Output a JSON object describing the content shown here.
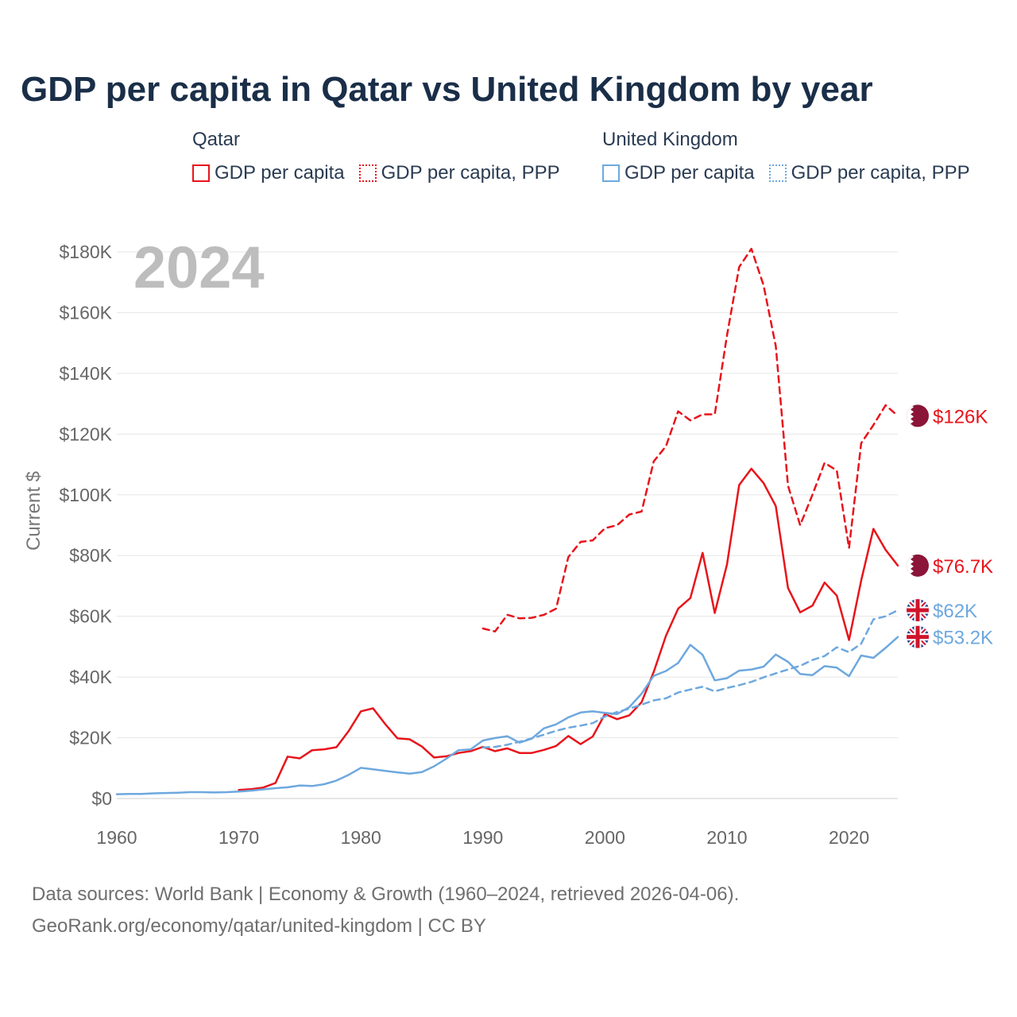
{
  "title": "GDP per capita in Qatar vs United Kingdom by year",
  "legend": {
    "groups": [
      {
        "name": "Qatar",
        "color": "#e8141b",
        "items": [
          {
            "label": "GDP per capita",
            "style": "solid"
          },
          {
            "label": "GDP per capita, PPP",
            "style": "dotted"
          }
        ]
      },
      {
        "name": "United Kingdom",
        "color": "#6ea8de",
        "items": [
          {
            "label": "GDP per capita",
            "style": "solid"
          },
          {
            "label": "GDP per capita, PPP",
            "style": "dotted"
          }
        ]
      }
    ]
  },
  "year_watermark": "2024",
  "source": {
    "line1": "Data sources: World Bank | Economy & Growth (1960–2024, retrieved 2026-04-06).",
    "line2": "GeoRank.org/economy/qatar/united-kingdom | CC BY"
  },
  "chart_data": {
    "type": "line",
    "title": "GDP per capita in Qatar vs United Kingdom by year",
    "xlabel": "",
    "ylabel": "Current $",
    "xlim": [
      1960,
      2024
    ],
    "ylim": [
      0,
      180000
    ],
    "grid": true,
    "x_ticks": [
      1960,
      1970,
      1980,
      1990,
      2000,
      2010,
      2020
    ],
    "x_tick_labels": [
      "1960",
      "1970",
      "1980",
      "1990",
      "2000",
      "2010",
      "2020"
    ],
    "y_ticks": [
      0,
      20000,
      40000,
      60000,
      80000,
      100000,
      120000,
      140000,
      160000,
      180000
    ],
    "y_tick_labels": [
      "$0",
      "$20K",
      "$40K",
      "$60K",
      "$80K",
      "$100K",
      "$120K",
      "$140K",
      "$160K",
      "$180K"
    ],
    "series": [
      {
        "name": "Qatar GDP per capita, PPP",
        "color": "#e8141b",
        "dash": true,
        "end_label": "$126K",
        "flag": "qatar",
        "x": [
          1990,
          1991,
          1992,
          1993,
          1994,
          1995,
          1996,
          1997,
          1998,
          1999,
          2000,
          2001,
          2002,
          2003,
          2004,
          2005,
          2006,
          2007,
          2008,
          2009,
          2010,
          2011,
          2012,
          2013,
          2014,
          2015,
          2016,
          2017,
          2018,
          2019,
          2020,
          2021,
          2022,
          2023,
          2024
        ],
        "values": [
          56000,
          55000,
          60500,
          59300,
          59500,
          60500,
          62500,
          79500,
          84500,
          85000,
          89000,
          90000,
          93500,
          94500,
          111000,
          116000,
          127500,
          124500,
          126500,
          126500,
          152500,
          175000,
          181000,
          169000,
          149000,
          103000,
          90000,
          100000,
          110500,
          108000,
          82500,
          117000,
          123000,
          129500,
          126000
        ]
      },
      {
        "name": "Qatar GDP per capita",
        "color": "#e8141b",
        "dash": false,
        "end_label": "$76.7K",
        "flag": "qatar",
        "x": [
          1970,
          1971,
          1972,
          1973,
          1974,
          1975,
          1976,
          1977,
          1978,
          1979,
          1980,
          1981,
          1982,
          1983,
          1984,
          1985,
          1986,
          1987,
          1988,
          1989,
          1990,
          1991,
          1992,
          1993,
          1994,
          1995,
          1996,
          1997,
          1998,
          1999,
          2000,
          2001,
          2002,
          2003,
          2004,
          2005,
          2006,
          2007,
          2008,
          2009,
          2010,
          2011,
          2012,
          2013,
          2014,
          2015,
          2016,
          2017,
          2018,
          2019,
          2020,
          2021,
          2022,
          2023,
          2024
        ],
        "values": [
          2800,
          3100,
          3600,
          5100,
          13800,
          13200,
          15900,
          16200,
          16900,
          22200,
          28700,
          29700,
          24500,
          19800,
          19500,
          17100,
          13500,
          13900,
          15000,
          15600,
          17000,
          15600,
          16500,
          15000,
          15000,
          16000,
          17300,
          20600,
          17900,
          20400,
          27800,
          26100,
          27400,
          31700,
          41700,
          53600,
          62500,
          66000,
          80900,
          61100,
          77100,
          103200,
          108600,
          103900,
          96300,
          69300,
          61300,
          63500,
          71100,
          66800,
          52200,
          71800,
          88800,
          81900,
          76700
        ]
      },
      {
        "name": "United Kingdom GDP per capita, PPP",
        "color": "#6ea8de",
        "dash": true,
        "end_label": "$62K",
        "flag": "uk",
        "x": [
          1990,
          1991,
          1992,
          1993,
          1994,
          1995,
          1996,
          1997,
          1998,
          1999,
          2000,
          2001,
          2002,
          2003,
          2004,
          2005,
          2006,
          2007,
          2008,
          2009,
          2010,
          2011,
          2012,
          2013,
          2014,
          2015,
          2016,
          2017,
          2018,
          2019,
          2020,
          2021,
          2022,
          2023,
          2024
        ],
        "values": [
          16800,
          17000,
          17700,
          18700,
          19800,
          21000,
          22300,
          23300,
          24000,
          24800,
          27000,
          28500,
          29600,
          30900,
          32300,
          33000,
          34900,
          35900,
          36800,
          35300,
          36400,
          37300,
          38400,
          39900,
          41200,
          42500,
          43700,
          45600,
          46900,
          49800,
          48200,
          51000,
          59000,
          60000,
          62000
        ]
      },
      {
        "name": "United Kingdom GDP per capita",
        "color": "#6ea8de",
        "dash": false,
        "end_label": "$53.2K",
        "flag": "uk",
        "x": [
          1960,
          1961,
          1962,
          1963,
          1964,
          1965,
          1966,
          1967,
          1968,
          1969,
          1970,
          1971,
          1972,
          1973,
          1974,
          1975,
          1976,
          1977,
          1978,
          1979,
          1980,
          1981,
          1982,
          1983,
          1984,
          1985,
          1986,
          1987,
          1988,
          1989,
          1990,
          1991,
          1992,
          1993,
          1994,
          1995,
          1996,
          1997,
          1998,
          1999,
          2000,
          2001,
          2002,
          2003,
          2004,
          2005,
          2006,
          2007,
          2008,
          2009,
          2010,
          2011,
          2012,
          2013,
          2014,
          2015,
          2016,
          2017,
          2018,
          2019,
          2020,
          2021,
          2022,
          2023,
          2024
        ],
        "values": [
          1400,
          1500,
          1500,
          1700,
          1800,
          1900,
          2100,
          2100,
          2000,
          2100,
          2300,
          2600,
          3000,
          3400,
          3700,
          4300,
          4100,
          4700,
          5900,
          7800,
          10100,
          9600,
          9100,
          8600,
          8200,
          8700,
          10600,
          13100,
          15900,
          16200,
          19100,
          19900,
          20500,
          18400,
          19700,
          23100,
          24400,
          26700,
          28300,
          28700,
          28200,
          27800,
          30100,
          34500,
          40400,
          42000,
          44600,
          50600,
          47300,
          38900,
          39600,
          42100,
          42500,
          43400,
          47400,
          45000,
          41000,
          40600,
          43600,
          43100,
          40300,
          47100,
          46300,
          49600,
          53200
        ]
      }
    ]
  }
}
